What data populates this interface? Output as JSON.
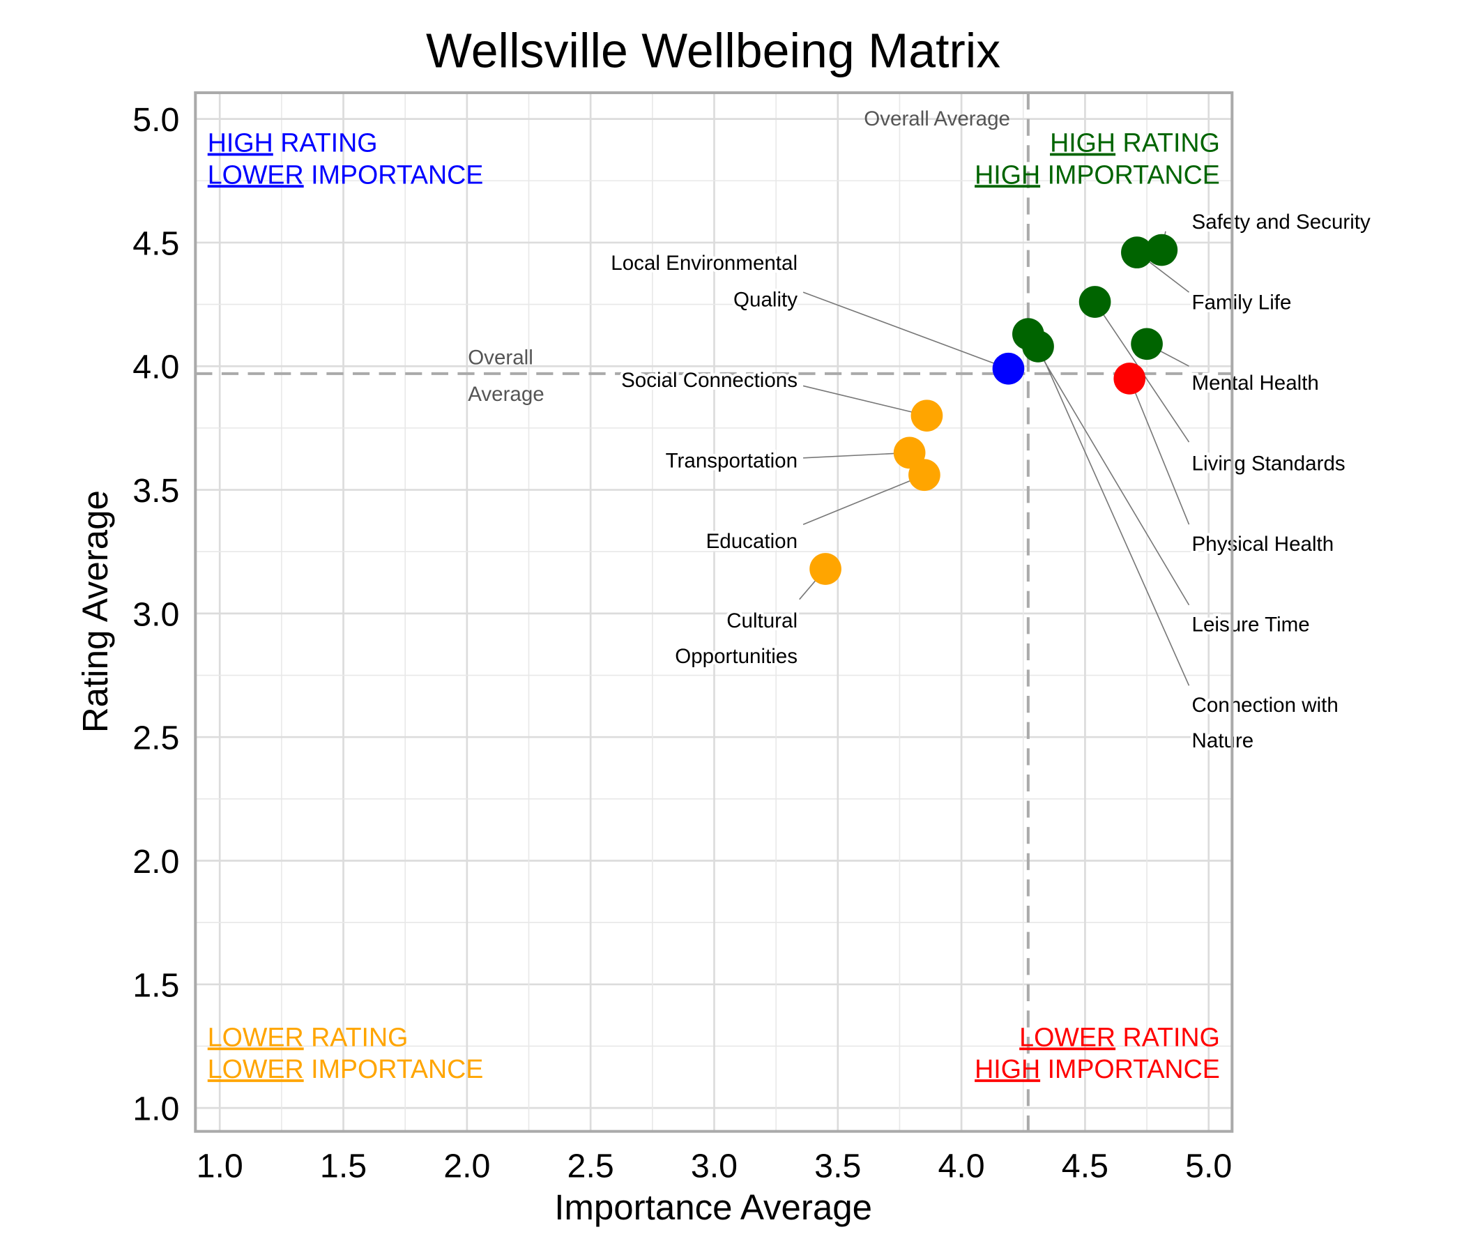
{
  "chart_data": {
    "type": "scatter",
    "title": "Wellsville Wellbeing Matrix",
    "xlabel": "Importance Average",
    "ylabel": "Rating Average",
    "xlim": [
      0.9,
      5.09
    ],
    "ylim": [
      0.9,
      5.1
    ],
    "xticks": [
      "1.0",
      "1.5",
      "2.0",
      "2.5",
      "3.0",
      "3.5",
      "4.0",
      "4.5",
      "5.0"
    ],
    "yticks": [
      "1.0",
      "1.5",
      "2.0",
      "2.5",
      "3.0",
      "3.5",
      "4.0",
      "4.5",
      "5.0"
    ],
    "grid": true,
    "reference_lines": {
      "x_overall_average": 4.27,
      "y_overall_average": 3.97,
      "x_label": "Overall Average",
      "y_label_lines": [
        "Overall",
        "Average"
      ]
    },
    "quadrants": [
      {
        "id": "top-left",
        "color": "#0000ff",
        "lines": [
          [
            "HIGH",
            " RATING"
          ],
          [
            "LOWER",
            " IMPORTANCE"
          ]
        ]
      },
      {
        "id": "top-right",
        "color": "#006400",
        "lines": [
          [
            "HIGH",
            " RATING"
          ],
          [
            "HIGH",
            " IMPORTANCE"
          ]
        ]
      },
      {
        "id": "bottom-left",
        "color": "#ffa500",
        "lines": [
          [
            "LOWER",
            " RATING"
          ],
          [
            "LOWER",
            " IMPORTANCE"
          ]
        ]
      },
      {
        "id": "bottom-right",
        "color": "#ff0000",
        "lines": [
          [
            "LOWER",
            " RATING"
          ],
          [
            "HIGH",
            " IMPORTANCE"
          ]
        ]
      }
    ],
    "points": [
      {
        "label": "Safety and Security",
        "x": 4.81,
        "y": 4.47,
        "color": "#006400"
      },
      {
        "label": "Family Life",
        "x": 4.71,
        "y": 4.46,
        "color": "#006400"
      },
      {
        "label": "Mental Health",
        "x": 4.75,
        "y": 4.09,
        "color": "#006400"
      },
      {
        "label": "Living Standards",
        "x": 4.54,
        "y": 4.26,
        "color": "#006400"
      },
      {
        "label": "Physical Health",
        "x": 4.68,
        "y": 3.95,
        "color": "#ff0000"
      },
      {
        "label": "Leisure Time",
        "x": 4.27,
        "y": 4.13,
        "color": "#006400"
      },
      {
        "label": "Connection with Nature",
        "x": 4.31,
        "y": 4.08,
        "color": "#006400"
      },
      {
        "label": "Local Environmental Quality",
        "x": 4.19,
        "y": 3.99,
        "color": "#0000ff"
      },
      {
        "label": "Social Connections",
        "x": 3.86,
        "y": 3.8,
        "color": "#ffa500"
      },
      {
        "label": "Transportation",
        "x": 3.79,
        "y": 3.65,
        "color": "#ffa500"
      },
      {
        "label": "Education",
        "x": 3.85,
        "y": 3.56,
        "color": "#ffa500"
      },
      {
        "label": "Cultural Opportunities",
        "x": 3.45,
        "y": 3.18,
        "color": "#ffa500"
      }
    ]
  }
}
